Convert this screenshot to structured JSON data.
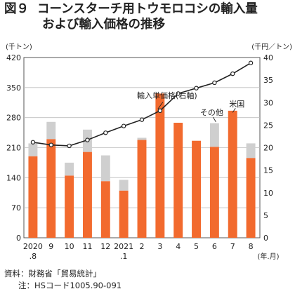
{
  "figure": {
    "number": "図９",
    "title_line1": "コーンスターチ用トウモロコシの輸入量",
    "title_line2": "および輸入価格の推移"
  },
  "chart_data": {
    "type": "bar",
    "categories": [
      {
        "top": "2020",
        "bottom": ".8"
      },
      {
        "top": "9",
        "bottom": ""
      },
      {
        "top": "10",
        "bottom": ""
      },
      {
        "top": "11",
        "bottom": ""
      },
      {
        "top": "12",
        "bottom": ""
      },
      {
        "top": "2021",
        "bottom": ".1"
      },
      {
        "top": "2",
        "bottom": ""
      },
      {
        "top": "3",
        "bottom": ""
      },
      {
        "top": "4",
        "bottom": ""
      },
      {
        "top": "5",
        "bottom": ""
      },
      {
        "top": "6",
        "bottom": ""
      },
      {
        "top": "7",
        "bottom": ""
      },
      {
        "top": "8",
        "bottom": ""
      }
    ],
    "x_unit_label": "(年.月)",
    "series": [
      {
        "name": "米国",
        "values": [
          190,
          230,
          145,
          200,
          132,
          110,
          228,
          336,
          268,
          226,
          212,
          296,
          186
        ],
        "color": "#f26a2e"
      },
      {
        "name": "その他",
        "values": [
          30,
          40,
          30,
          52,
          60,
          25,
          5,
          0,
          0,
          0,
          55,
          0,
          34
        ],
        "color": "#cfcfcf"
      },
      {
        "name": "輸入単価格(右軸)",
        "values": [
          21.2,
          20.6,
          20.4,
          21.7,
          23.3,
          24.8,
          26.2,
          28.2,
          32.0,
          33.2,
          34.4,
          36.4,
          38.8
        ],
        "color": "#222222",
        "axis": "right"
      }
    ],
    "annotations": {
      "us_label": "米国",
      "other_label": "その他",
      "price_label": "輸入単価格(右軸)"
    },
    "left_axis": {
      "unit": "(千トン)",
      "min": 0,
      "max": 420,
      "ticks": [
        0,
        70,
        140,
        210,
        280,
        350,
        420
      ]
    },
    "right_axis": {
      "unit": "(千円／トン)",
      "min": 0,
      "max": 40,
      "ticks": [
        0,
        5,
        10,
        15,
        20,
        25,
        30,
        35,
        40
      ]
    },
    "grid": true
  },
  "source": {
    "line1": "資料：財務省「貿易統計」",
    "line2": "注：HSコード1005.90-091"
  }
}
